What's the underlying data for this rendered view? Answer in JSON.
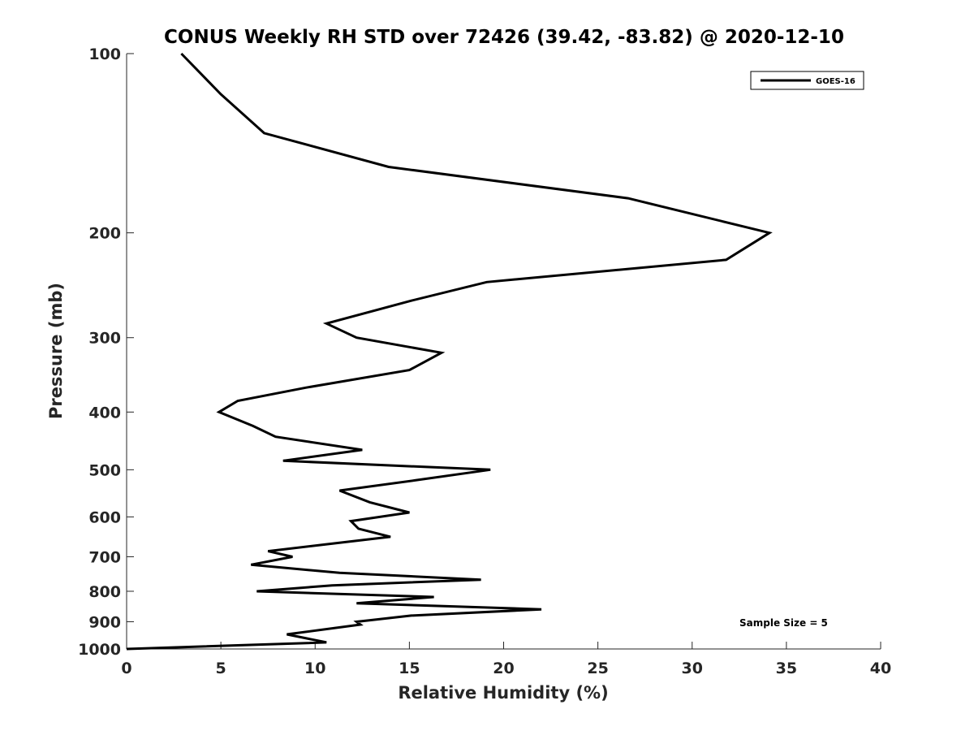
{
  "chart_data": {
    "type": "line",
    "title": "CONUS Weekly RH STD over 72426 (39.42, -83.82) @ 2020-12-10",
    "xlabel": "Relative Humidity (%)",
    "ylabel": "Pressure (mb)",
    "xlim": [
      0,
      40
    ],
    "ylim": [
      100,
      1000
    ],
    "y_scale": "log",
    "y_reversed": true,
    "grid": false,
    "x_ticks": [
      0,
      5,
      10,
      15,
      20,
      25,
      30,
      35,
      40
    ],
    "y_ticks": [
      100,
      200,
      300,
      400,
      500,
      600,
      700,
      800,
      900,
      1000
    ],
    "legend": {
      "position": "top-right",
      "entries": [
        "GOES-16"
      ]
    },
    "annotation": "Sample Size = 5",
    "series": [
      {
        "name": "GOES-16",
        "color": "#000000",
        "x": [
          2.9,
          5.0,
          7.3,
          13.9,
          26.6,
          34.1,
          31.8,
          19.1,
          15.1,
          10.6,
          12.2,
          16.7,
          15.0,
          9.5,
          5.9,
          4.9,
          6.7,
          7.9,
          12.5,
          8.3,
          19.3,
          15.3,
          11.3,
          12.9,
          15.0,
          11.9,
          12.3,
          14.0,
          10.6,
          7.5,
          8.8,
          6.6,
          11.3,
          18.8,
          10.9,
          6.9,
          16.3,
          12.2,
          22.0,
          15.1,
          12.2,
          12.4,
          8.5,
          10.6,
          0.0
        ],
        "y": [
          100,
          117,
          136,
          155,
          175,
          200,
          222,
          242,
          260,
          284,
          300,
          318,
          340,
          364,
          383,
          400,
          422,
          440,
          463,
          483,
          500,
          521,
          542,
          567,
          590,
          610,
          628,
          648,
          667,
          685,
          700,
          722,
          745,
          765,
          782,
          800,
          818,
          838,
          858,
          879,
          900,
          910,
          945,
          975,
          1000
        ]
      }
    ]
  }
}
